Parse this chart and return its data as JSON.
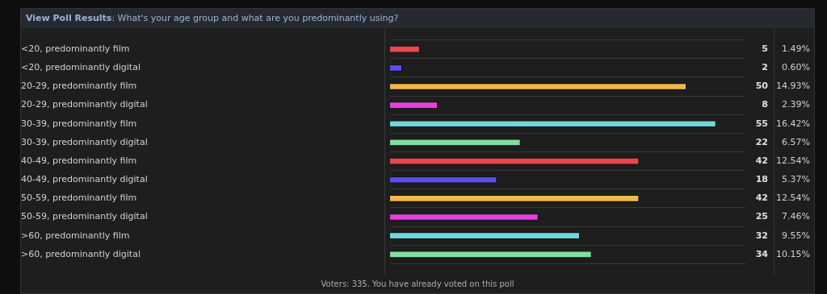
{
  "chart_data": {
    "type": "bar",
    "orientation": "horizontal",
    "title": "View Poll Results: What's your age group and what are you predominantly using?",
    "categories": [
      "<20, predominantly film",
      "<20, predominantly digital",
      "20-29, predominantly film",
      "20-29, predominantly digital",
      "30-39, predominantly film",
      "30-39, predominantly digital",
      "40-49, predominantly film",
      "40-49, predominantly digital",
      "50-59, predominantly film",
      "50-59, predominantly digital",
      ">60, predominantly film",
      ">60, predominantly digital"
    ],
    "values": [
      5,
      2,
      50,
      8,
      55,
      22,
      42,
      18,
      42,
      25,
      32,
      34
    ],
    "colors": [
      "#e8474f",
      "#5a4cf0",
      "#f2b84b",
      "#e83ee0",
      "#6fd8dc",
      "#7fe0a0",
      "#e8474f",
      "#5a4cf0",
      "#f2b84b",
      "#e83ee0",
      "#6fd8dc",
      "#7fe0a0"
    ],
    "data_labels": true,
    "grid": "y",
    "legend": false,
    "tick_labels": "y",
    "annotations": [
      "1.49%",
      "0.60%",
      "14.93%",
      "2.39%",
      "16.42%",
      "6.57%",
      "12.54%",
      "5.37%",
      "12.54%",
      "7.46%",
      "9.55%",
      "10.15%",
      "Voters: 335. You have already voted on this poll"
    ]
  }
}
